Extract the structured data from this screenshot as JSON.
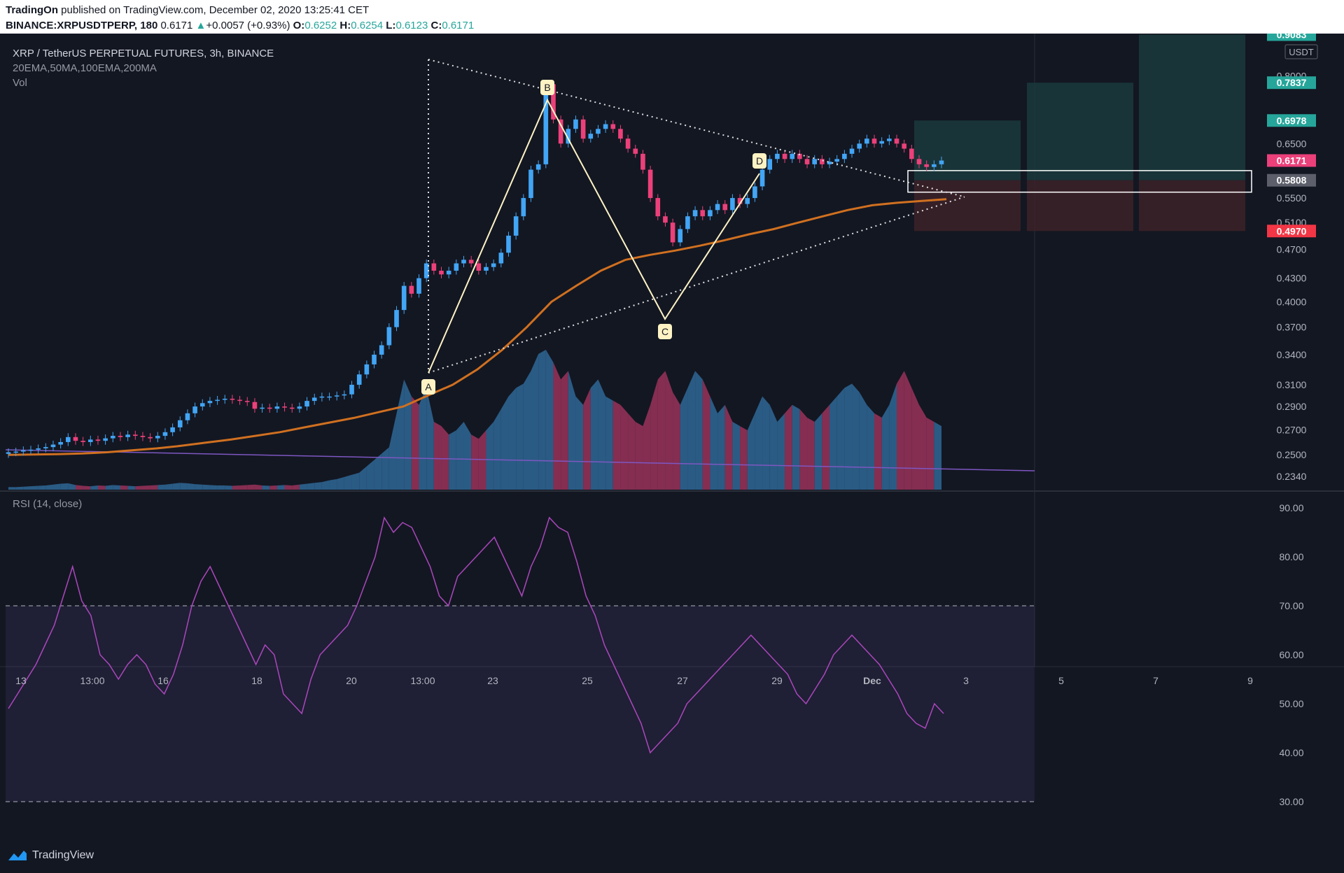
{
  "header": {
    "publisher": "TradingOn",
    "published_text": "published on TradingView.com, December 02, 2020 13:25:41 CET",
    "symbol": "BINANCE:XRPUSDTPERP, 180",
    "last": "0.6171",
    "change": "+0.0057 (+0.93%)",
    "o_label": "O:",
    "o_value": "0.6252",
    "h_label": "H:",
    "h_value": "0.6254",
    "l_label": "L:",
    "l_value": "0.6123",
    "c_label": "C:",
    "c_value": "0.6171"
  },
  "legend": {
    "title": "XRP / TetherUS PERPETUAL FUTURES, 3h, BINANCE",
    "indicators": "20EMA,50MA,100EMA,200MA",
    "vol": "Vol",
    "rsi": "RSI (14, close)"
  },
  "price_axis": {
    "currency": "USDT",
    "ticks": [
      "0.9083",
      "0.8000",
      "0.7837",
      "0.6978",
      "0.6500",
      "0.6171",
      "0.5808",
      "0.5500",
      "0.5100",
      "0.4970",
      "0.4700",
      "0.4300",
      "0.4000",
      "0.3700",
      "0.3400",
      "0.3100",
      "0.2900",
      "0.2700",
      "0.2500",
      "0.2340"
    ],
    "tags": [
      {
        "value": "0.9083",
        "color": "#26a69a"
      },
      {
        "value": "0.7837",
        "color": "#26a69a"
      },
      {
        "value": "0.6978",
        "color": "#26a69a"
      },
      {
        "value": "0.6171",
        "color": "#ec407a"
      },
      {
        "value": "0.5808",
        "color": "#5d606b"
      },
      {
        "value": "0.4970",
        "color": "#f23645"
      }
    ]
  },
  "rsi_axis": {
    "ticks": [
      "90.00",
      "80.00",
      "70.00",
      "60.00",
      "50.00",
      "40.00",
      "30.00"
    ]
  },
  "time_axis": {
    "labels": [
      "13",
      "13:00",
      "16",
      "18",
      "20",
      "13:00",
      "23",
      "25",
      "27",
      "29",
      "Dec",
      "3",
      "5",
      "7",
      "9"
    ]
  },
  "pattern_labels": [
    "A",
    "B",
    "C",
    "D"
  ],
  "footer": {
    "brand": "TradingView"
  },
  "colors": {
    "up": "#42a5f5",
    "down": "#ec407a",
    "ma": "#d07020",
    "rsi": "#ab47bc",
    "bg": "#131722"
  },
  "chart_data": {
    "type": "candlestick",
    "symbol": "XRPUSDTPERP",
    "timeframe": "3h",
    "ohlc_approx_close": [
      0.252,
      0.2525,
      0.2535,
      0.254,
      0.255,
      0.256,
      0.258,
      0.26,
      0.264,
      0.261,
      0.26,
      0.262,
      0.261,
      0.263,
      0.265,
      0.264,
      0.266,
      0.265,
      0.264,
      0.263,
      0.265,
      0.268,
      0.272,
      0.278,
      0.284,
      0.29,
      0.293,
      0.295,
      0.296,
      0.297,
      0.296,
      0.295,
      0.294,
      0.288,
      0.289,
      0.288,
      0.29,
      0.289,
      0.288,
      0.29,
      0.295,
      0.298,
      0.299,
      0.299,
      0.3,
      0.301,
      0.31,
      0.32,
      0.33,
      0.34,
      0.35,
      0.37,
      0.39,
      0.42,
      0.41,
      0.43,
      0.45,
      0.44,
      0.435,
      0.44,
      0.45,
      0.455,
      0.45,
      0.44,
      0.445,
      0.45,
      0.465,
      0.49,
      0.52,
      0.55,
      0.6,
      0.61,
      0.78,
      0.7,
      0.65,
      0.68,
      0.7,
      0.66,
      0.67,
      0.68,
      0.69,
      0.68,
      0.66,
      0.64,
      0.63,
      0.6,
      0.55,
      0.52,
      0.51,
      0.48,
      0.5,
      0.52,
      0.53,
      0.52,
      0.53,
      0.54,
      0.53,
      0.55,
      0.54,
      0.55,
      0.57,
      0.6,
      0.62,
      0.63,
      0.62,
      0.63,
      0.62,
      0.61,
      0.62,
      0.61,
      0.615,
      0.62,
      0.63,
      0.64,
      0.65,
      0.66,
      0.65,
      0.655,
      0.66,
      0.65,
      0.64,
      0.62,
      0.61,
      0.605,
      0.61,
      0.6171
    ],
    "volume_approx": [
      6,
      6,
      7,
      8,
      9,
      10,
      12,
      14,
      15,
      11,
      9,
      8,
      10,
      9,
      11,
      10,
      9,
      8,
      9,
      10,
      11,
      12,
      14,
      16,
      15,
      13,
      12,
      11,
      10,
      10,
      9,
      10,
      11,
      12,
      10,
      9,
      10,
      11,
      10,
      12,
      14,
      16,
      18,
      22,
      25,
      30,
      35,
      40,
      55,
      70,
      85,
      100,
      180,
      260,
      220,
      200,
      240,
      160,
      150,
      130,
      140,
      160,
      130,
      120,
      140,
      160,
      190,
      220,
      240,
      250,
      280,
      320,
      330,
      300,
      260,
      280,
      220,
      200,
      240,
      260,
      220,
      210,
      200,
      180,
      160,
      150,
      200,
      260,
      280,
      230,
      200,
      240,
      280,
      260,
      220,
      180,
      200,
      160,
      150,
      140,
      180,
      220,
      200,
      160,
      180,
      200,
      190,
      170,
      160,
      180,
      200,
      220,
      240,
      250,
      230,
      200,
      180,
      170,
      200,
      250,
      280,
      240,
      200,
      170,
      160,
      150
    ],
    "ema_approx": [
      0.25,
      0.2502,
      0.2505,
      0.251,
      0.252,
      0.2535,
      0.255,
      0.257,
      0.2595,
      0.262,
      0.265,
      0.268,
      0.272,
      0.276,
      0.28,
      0.285,
      0.29,
      0.3,
      0.31,
      0.325,
      0.345,
      0.37,
      0.4,
      0.42,
      0.44,
      0.455,
      0.462,
      0.468,
      0.475,
      0.483,
      0.492,
      0.5,
      0.51,
      0.52,
      0.53,
      0.538,
      0.542,
      0.545,
      0.548
    ],
    "rsi_approx": [
      49,
      52,
      55,
      58,
      62,
      66,
      72,
      78,
      71,
      68,
      60,
      58,
      55,
      58,
      60,
      58,
      54,
      52,
      56,
      62,
      70,
      75,
      78,
      74,
      70,
      66,
      62,
      58,
      62,
      60,
      52,
      50,
      48,
      55,
      60,
      62,
      64,
      66,
      70,
      75,
      80,
      88,
      85,
      87,
      86,
      82,
      78,
      72,
      70,
      76,
      78,
      80,
      82,
      84,
      80,
      76,
      72,
      78,
      82,
      88,
      86,
      85,
      79,
      72,
      68,
      62,
      58,
      54,
      50,
      46,
      40,
      42,
      44,
      46,
      50,
      52,
      54,
      56,
      58,
      60,
      62,
      64,
      62,
      60,
      58,
      56,
      52,
      50,
      53,
      56,
      60,
      62,
      64,
      62,
      60,
      58,
      55,
      52,
      48,
      46,
      45,
      50,
      48
    ],
    "rsi_levels": [
      70,
      30
    ],
    "pattern": {
      "type": "ABCD",
      "points": [
        "A",
        "B",
        "C",
        "D"
      ]
    },
    "targets": [
      "0.6978",
      "0.7837",
      "0.9083"
    ],
    "stop": "0.4970",
    "entry": "0.5808",
    "price_range": [
      0.234,
      0.9083
    ],
    "rsi_range": [
      30,
      90
    ]
  }
}
